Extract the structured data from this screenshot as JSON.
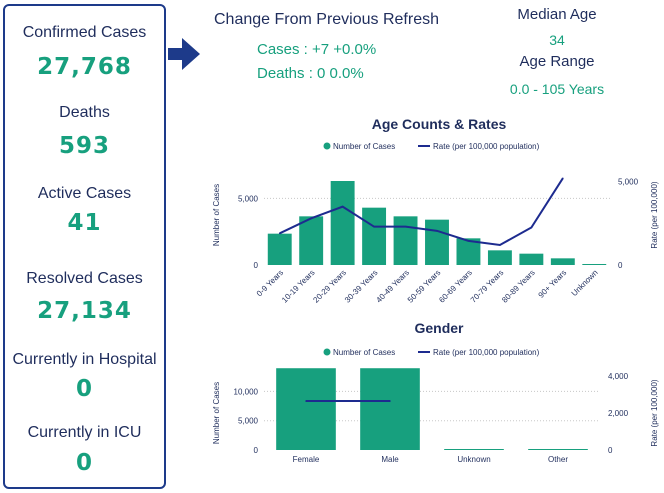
{
  "stats": {
    "confirmed_label": "Confirmed Cases",
    "confirmed_value": "27,768",
    "deaths_label": "Deaths",
    "deaths_value": "593",
    "active_label": "Active Cases",
    "active_value": "41",
    "resolved_label": "Resolved Cases",
    "resolved_value": "27,134",
    "hospital_label": "Currently in Hospital",
    "hospital_value": "0",
    "icu_label": "Currently in ICU",
    "icu_value": "0"
  },
  "change": {
    "title": "Change From Previous Refresh",
    "cases_line": "Cases : +7 +0.0%",
    "deaths_line": "Deaths : 0 0.0%"
  },
  "age": {
    "median_label": "Median Age",
    "median_value": "34",
    "range_label": "Age Range",
    "range_value": "0.0 - 105 Years"
  },
  "colors": {
    "bar": "#17a07e",
    "line": "#1d2b8f",
    "text": "#1f2d5c",
    "accent": "#17a07e"
  },
  "chart_data": [
    {
      "type": "bar",
      "title": "Age Counts & Rates",
      "legend": [
        "Number of Cases",
        "Rate (per 100,000 population)"
      ],
      "categories": [
        "0-9 Years",
        "10-19 Years",
        "20-29 Years",
        "30-39 Years",
        "40-49 Years",
        "50-59 Years",
        "60-69 Years",
        "70-79 Years",
        "80-89 Years",
        "90+ Years",
        "Unknown"
      ],
      "series": [
        {
          "name": "Number of Cases",
          "axis": "left",
          "values": [
            2350,
            3650,
            6300,
            4300,
            3650,
            3400,
            2000,
            1100,
            850,
            500,
            50
          ]
        },
        {
          "name": "Rate (per 100,000 population)",
          "axis": "right",
          "values": [
            1900,
            2800,
            3500,
            2300,
            2300,
            2050,
            1450,
            1200,
            2250,
            5200,
            null
          ]
        }
      ],
      "ylabel": "Number of Cases",
      "ylim": [
        0,
        7500
      ],
      "yticks": [
        0,
        5000
      ],
      "ytick_labels": [
        "0",
        "5,000"
      ],
      "y2label": "Rate (per 100,000)",
      "y2lim": [
        0,
        6000
      ],
      "y2ticks": [
        0,
        5000
      ],
      "y2tick_labels": [
        "0",
        "5,000"
      ]
    },
    {
      "type": "bar",
      "title": "Gender",
      "legend": [
        "Number of Cases",
        "Rate (per 100,000 population)"
      ],
      "categories": [
        "Female",
        "Male",
        "Unknown",
        "Other"
      ],
      "series": [
        {
          "name": "Number of Cases",
          "axis": "left",
          "values": [
            13950,
            13950,
            50,
            50
          ]
        },
        {
          "name": "Rate (per 100,000 population)",
          "axis": "right",
          "values": [
            2650,
            2650,
            null,
            null
          ]
        }
      ],
      "ylabel": "Number of Cases",
      "ylim": [
        0,
        14500
      ],
      "yticks": [
        0,
        5000,
        10000
      ],
      "ytick_labels": [
        "0",
        "5,000",
        "10,000"
      ],
      "y2label": "Rate (per 100,000)",
      "y2lim": [
        0,
        4600
      ],
      "y2ticks": [
        0,
        2000,
        4000
      ],
      "y2tick_labels": [
        "0",
        "2,000",
        "4,000"
      ]
    }
  ]
}
